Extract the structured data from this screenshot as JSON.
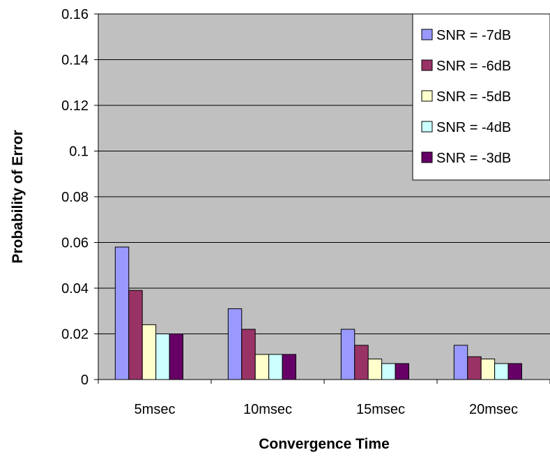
{
  "chart_data": {
    "type": "bar",
    "title": "",
    "xlabel": "Convergence Time",
    "ylabel": "Probability of Error",
    "categories": [
      "5msec",
      "10msec",
      "15msec",
      "20msec"
    ],
    "ylim": [
      0,
      0.16
    ],
    "yticks": [
      "0",
      "0.02",
      "0.04",
      "0.06",
      "0.08",
      "0.1",
      "0.12",
      "0.14",
      "0.16"
    ],
    "grid": true,
    "legend_position": "top-right",
    "plot_background": "#c0c0c0",
    "series": [
      {
        "name": "SNR = -7dB",
        "color": "#9999ff",
        "values": [
          0.058,
          0.031,
          0.022,
          0.015
        ]
      },
      {
        "name": "SNR = -6dB",
        "color": "#993366",
        "values": [
          0.039,
          0.022,
          0.015,
          0.01
        ]
      },
      {
        "name": "SNR = -5dB",
        "color": "#ffffcc",
        "values": [
          0.024,
          0.011,
          0.009,
          0.009
        ]
      },
      {
        "name": "SNR = -4dB",
        "color": "#ccffff",
        "values": [
          0.02,
          0.011,
          0.007,
          0.007
        ]
      },
      {
        "name": "SNR = -3dB",
        "color": "#660066",
        "values": [
          0.02,
          0.011,
          0.007,
          0.007
        ]
      }
    ]
  }
}
